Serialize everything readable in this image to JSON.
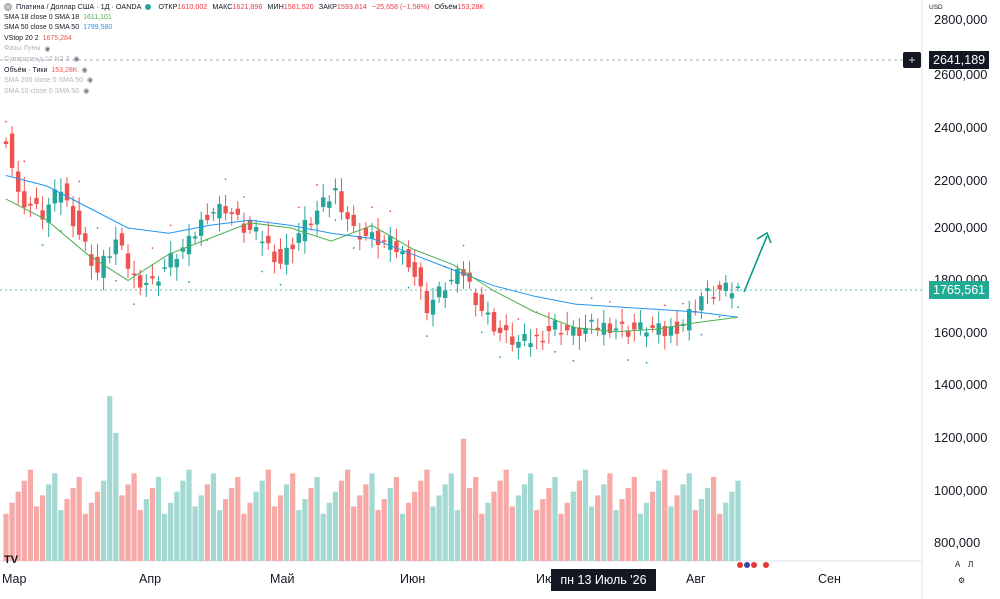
{
  "header": {
    "symbol": "Платина / Доллар США · 1Д · OANDA",
    "ohlc": [
      {
        "key": "ОТКР",
        "value": "1610,002"
      },
      {
        "key": "МАКС",
        "value": "1621,896"
      },
      {
        "key": "МИН",
        "value": "1581,526"
      },
      {
        "key": "ЗАКР",
        "value": "1593,814"
      },
      {
        "key": "",
        "value": "−25,658 (−1,58%)"
      },
      {
        "key": "Объём",
        "value": "153,28K"
      }
    ]
  },
  "legend": [
    {
      "label": "SMA 18 close 0 SMA 18",
      "value": "1611,101",
      "muted": false
    },
    {
      "label": "SMA 50 close 0 SMA 50",
      "value": "1799,580",
      "muted": false
    },
    {
      "label": "VStop 20 2",
      "value": "1675,284",
      "muted": false
    },
    {
      "label": "Фазы Луны",
      "value": "",
      "muted": true
    },
    {
      "label": "Супертренд 10 N2 3",
      "value": "",
      "muted": true
    },
    {
      "label": "Объём · Тики",
      "value": "153,28K",
      "muted": false
    },
    {
      "label": "SMA 200 close 0 SMA 50",
      "value": "",
      "muted": true
    },
    {
      "label": "SMA 10 close 0 SMA 50",
      "value": "",
      "muted": true
    }
  ],
  "price_axis": {
    "currency": "USD",
    "ticks": [
      "2800,000",
      "2600,000",
      "2400,000",
      "2200,000",
      "2000,000",
      "1800,000",
      "1600,000",
      "1400,000",
      "1200,000",
      "1000,000",
      "800,000"
    ],
    "crosshair_price": "2641,189",
    "last_price": "1765,561"
  },
  "time_axis": {
    "labels": [
      "Мар",
      "Апр",
      "Май",
      "Июн",
      "Ию",
      "Авг",
      "Сен"
    ],
    "crosshair_date": "пн 13 Июль '26"
  },
  "footer": {
    "logo": "TV",
    "auto_label": "A",
    "log_label": "Л"
  },
  "colors": {
    "up": "#26a69a",
    "down": "#ef5350",
    "sma18": "#4caf50",
    "sma50": "#2196f3",
    "vstop": "#ef5350",
    "forecast": "#089981"
  },
  "chart_data": {
    "type": "candlestick",
    "title": "Платина / Доллар США · 1Д · OANDA",
    "ylim": [
      700,
      2850
    ],
    "series": [
      {
        "name": "SMA 18 close 0 SMA 18",
        "values": [
          2110,
          2030,
          1900,
          1800,
          1900,
          1960,
          2020,
          2000,
          1950,
          2010,
          1920,
          1860,
          1760,
          1680,
          1620,
          1605,
          1615,
          1640,
          1660
        ]
      },
      {
        "name": "SMA 50 close 0 SMA 50",
        "values": [
          2200,
          2160,
          2080,
          2000,
          1980,
          2010,
          2030,
          2010,
          1980,
          1960,
          1900,
          1840,
          1780,
          1740,
          1710,
          1700,
          1690,
          1680,
          1660
        ]
      }
    ],
    "ohlc_sample": [
      {
        "x": "Мар",
        "o": 2290,
        "h": 2430,
        "l": 2030,
        "c": 2350
      },
      {
        "x": "Апр",
        "o": 1900,
        "h": 1960,
        "l": 1700,
        "c": 1800
      },
      {
        "x": "Май",
        "o": 2030,
        "h": 2150,
        "l": 1990,
        "c": 2080
      },
      {
        "x": "Июн",
        "o": 1820,
        "h": 1900,
        "l": 1780,
        "c": 1800
      },
      {
        "x": "Ию",
        "o": 1630,
        "h": 1660,
        "l": 1540,
        "c": 1570
      },
      {
        "x": "Авг",
        "o": 1750,
        "h": 1790,
        "l": 1700,
        "c": 1765
      }
    ],
    "volume_sample": [
      960,
      880,
      1000,
      880,
      1080,
      830,
      1130,
      860
    ],
    "xlabel": "",
    "ylabel": ""
  }
}
